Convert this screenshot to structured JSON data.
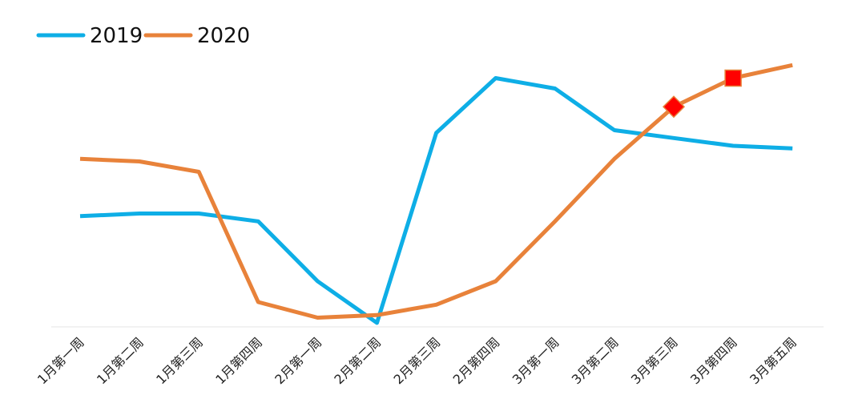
{
  "chart_data": {
    "type": "line",
    "title": "",
    "xlabel": "",
    "ylabel": "",
    "categories": [
      "1月第一周",
      "1月第二周",
      "1月第三周",
      "1月第四周",
      "2月第一周",
      "2月第二周",
      "2月第三周",
      "2月第四周",
      "3月第一周",
      "3月第二周",
      "3月第三周",
      "3月第四周",
      "3月第五周"
    ],
    "ylim": [
      0,
      100
    ],
    "grid": false,
    "y_axis_visible": false,
    "legend_position": "top-left",
    "series": [
      {
        "name": "2019",
        "color": "#0EAEE6",
        "values": [
          41,
          42,
          42,
          39,
          16,
          0,
          73,
          94,
          90,
          74,
          71,
          68,
          67
        ]
      },
      {
        "name": "2020",
        "color": "#E8823A",
        "values": [
          63,
          62,
          58,
          8,
          2,
          3,
          7,
          16,
          39,
          63,
          83,
          94,
          99
        ],
        "highlights": [
          {
            "index": 10,
            "shape": "diamond",
            "color": "#FF0000"
          },
          {
            "index": 11,
            "shape": "square",
            "color": "#FF0000"
          }
        ]
      }
    ]
  }
}
